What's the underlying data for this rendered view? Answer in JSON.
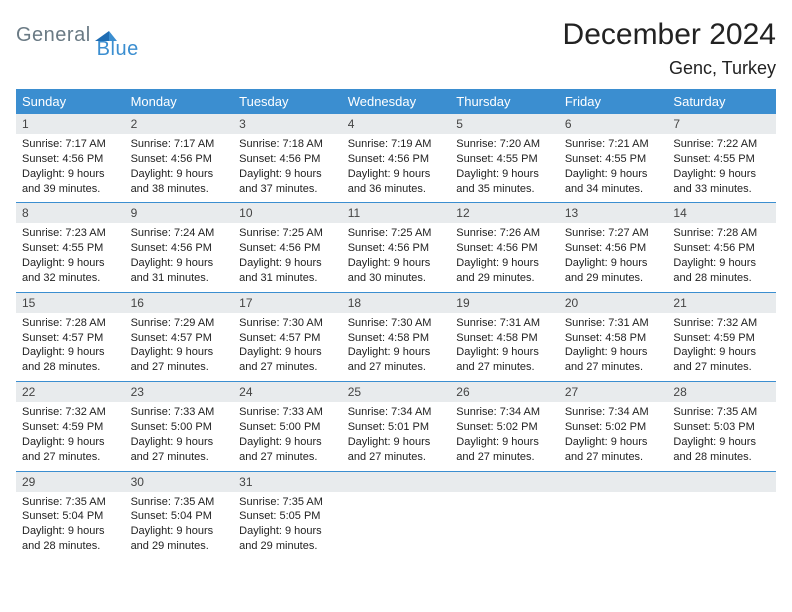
{
  "logo": {
    "part1": "General",
    "part2": "Blue"
  },
  "title": "December 2024",
  "location": "Genc, Turkey",
  "colors": {
    "header_bg": "#3b8ed0",
    "header_text": "#ffffff",
    "daynum_bg": "#e8ebed",
    "border": "#3b8ed0",
    "body_bg": "#ffffff",
    "logo_gray": "#6a7a84",
    "logo_blue": "#3b8ed0"
  },
  "layout": {
    "columns": 7,
    "rows": 5,
    "cell_font_size": 11,
    "dow_font_size": 13,
    "title_font_size": 30
  },
  "dow": [
    "Sunday",
    "Monday",
    "Tuesday",
    "Wednesday",
    "Thursday",
    "Friday",
    "Saturday"
  ],
  "days": [
    {
      "n": "1",
      "sr": "7:17 AM",
      "ss": "4:56 PM",
      "dl": "9 hours and 39 minutes."
    },
    {
      "n": "2",
      "sr": "7:17 AM",
      "ss": "4:56 PM",
      "dl": "9 hours and 38 minutes."
    },
    {
      "n": "3",
      "sr": "7:18 AM",
      "ss": "4:56 PM",
      "dl": "9 hours and 37 minutes."
    },
    {
      "n": "4",
      "sr": "7:19 AM",
      "ss": "4:56 PM",
      "dl": "9 hours and 36 minutes."
    },
    {
      "n": "5",
      "sr": "7:20 AM",
      "ss": "4:55 PM",
      "dl": "9 hours and 35 minutes."
    },
    {
      "n": "6",
      "sr": "7:21 AM",
      "ss": "4:55 PM",
      "dl": "9 hours and 34 minutes."
    },
    {
      "n": "7",
      "sr": "7:22 AM",
      "ss": "4:55 PM",
      "dl": "9 hours and 33 minutes."
    },
    {
      "n": "8",
      "sr": "7:23 AM",
      "ss": "4:55 PM",
      "dl": "9 hours and 32 minutes."
    },
    {
      "n": "9",
      "sr": "7:24 AM",
      "ss": "4:56 PM",
      "dl": "9 hours and 31 minutes."
    },
    {
      "n": "10",
      "sr": "7:25 AM",
      "ss": "4:56 PM",
      "dl": "9 hours and 31 minutes."
    },
    {
      "n": "11",
      "sr": "7:25 AM",
      "ss": "4:56 PM",
      "dl": "9 hours and 30 minutes."
    },
    {
      "n": "12",
      "sr": "7:26 AM",
      "ss": "4:56 PM",
      "dl": "9 hours and 29 minutes."
    },
    {
      "n": "13",
      "sr": "7:27 AM",
      "ss": "4:56 PM",
      "dl": "9 hours and 29 minutes."
    },
    {
      "n": "14",
      "sr": "7:28 AM",
      "ss": "4:56 PM",
      "dl": "9 hours and 28 minutes."
    },
    {
      "n": "15",
      "sr": "7:28 AM",
      "ss": "4:57 PM",
      "dl": "9 hours and 28 minutes."
    },
    {
      "n": "16",
      "sr": "7:29 AM",
      "ss": "4:57 PM",
      "dl": "9 hours and 27 minutes."
    },
    {
      "n": "17",
      "sr": "7:30 AM",
      "ss": "4:57 PM",
      "dl": "9 hours and 27 minutes."
    },
    {
      "n": "18",
      "sr": "7:30 AM",
      "ss": "4:58 PM",
      "dl": "9 hours and 27 minutes."
    },
    {
      "n": "19",
      "sr": "7:31 AM",
      "ss": "4:58 PM",
      "dl": "9 hours and 27 minutes."
    },
    {
      "n": "20",
      "sr": "7:31 AM",
      "ss": "4:58 PM",
      "dl": "9 hours and 27 minutes."
    },
    {
      "n": "21",
      "sr": "7:32 AM",
      "ss": "4:59 PM",
      "dl": "9 hours and 27 minutes."
    },
    {
      "n": "22",
      "sr": "7:32 AM",
      "ss": "4:59 PM",
      "dl": "9 hours and 27 minutes."
    },
    {
      "n": "23",
      "sr": "7:33 AM",
      "ss": "5:00 PM",
      "dl": "9 hours and 27 minutes."
    },
    {
      "n": "24",
      "sr": "7:33 AM",
      "ss": "5:00 PM",
      "dl": "9 hours and 27 minutes."
    },
    {
      "n": "25",
      "sr": "7:34 AM",
      "ss": "5:01 PM",
      "dl": "9 hours and 27 minutes."
    },
    {
      "n": "26",
      "sr": "7:34 AM",
      "ss": "5:02 PM",
      "dl": "9 hours and 27 minutes."
    },
    {
      "n": "27",
      "sr": "7:34 AM",
      "ss": "5:02 PM",
      "dl": "9 hours and 27 minutes."
    },
    {
      "n": "28",
      "sr": "7:35 AM",
      "ss": "5:03 PM",
      "dl": "9 hours and 28 minutes."
    },
    {
      "n": "29",
      "sr": "7:35 AM",
      "ss": "5:04 PM",
      "dl": "9 hours and 28 minutes."
    },
    {
      "n": "30",
      "sr": "7:35 AM",
      "ss": "5:04 PM",
      "dl": "9 hours and 29 minutes."
    },
    {
      "n": "31",
      "sr": "7:35 AM",
      "ss": "5:05 PM",
      "dl": "9 hours and 29 minutes."
    }
  ],
  "labels": {
    "sunrise": "Sunrise:",
    "sunset": "Sunset:",
    "daylight": "Daylight:"
  }
}
